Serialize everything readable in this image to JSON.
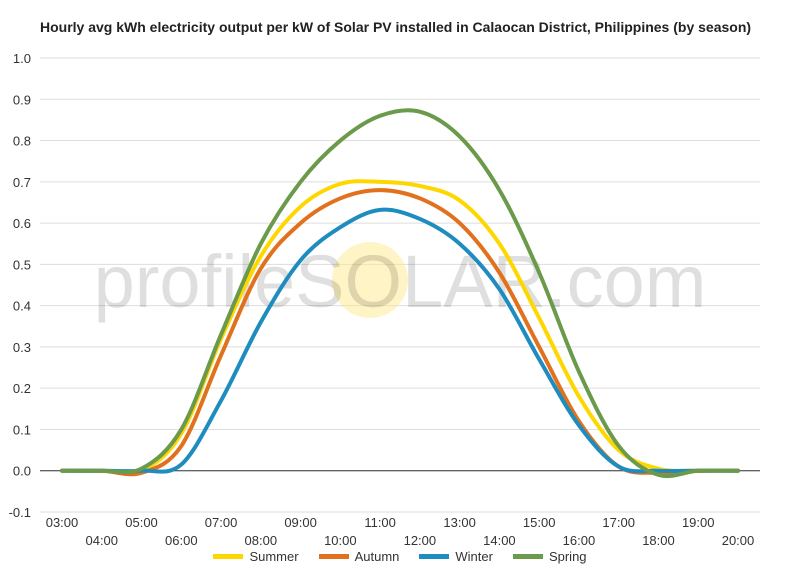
{
  "chart_data": {
    "type": "line",
    "title": "Hourly avg kWh electricity output per kW of Solar PV installed in Calaocan District, Philippines (by season)",
    "xlabel": "",
    "ylabel": "",
    "x": [
      "03:00",
      "04:00",
      "05:00",
      "06:00",
      "07:00",
      "08:00",
      "09:00",
      "10:00",
      "11:00",
      "12:00",
      "13:00",
      "14:00",
      "15:00",
      "16:00",
      "17:00",
      "18:00",
      "19:00",
      "20:00"
    ],
    "ylim": [
      -0.1,
      1.0
    ],
    "yticks": [
      "-0.1",
      "0.0",
      "0.1",
      "0.2",
      "0.3",
      "0.4",
      "0.5",
      "0.6",
      "0.7",
      "0.8",
      "0.9",
      "1.0"
    ],
    "grid": true,
    "legend_position": "bottom",
    "watermark": "profileSOLAR.com",
    "series": [
      {
        "name": "Summer",
        "color": "#FFD700",
        "values": [
          0,
          0,
          0,
          0.09,
          0.32,
          0.52,
          0.64,
          0.695,
          0.7,
          0.69,
          0.655,
          0.55,
          0.37,
          0.18,
          0.05,
          0.005,
          0,
          0
        ]
      },
      {
        "name": "Autumn",
        "color": "#E2711D",
        "values": [
          0,
          0,
          -0.005,
          0.06,
          0.28,
          0.49,
          0.6,
          0.66,
          0.68,
          0.66,
          0.6,
          0.48,
          0.3,
          0.12,
          0.01,
          -0.005,
          0,
          0
        ]
      },
      {
        "name": "Winter",
        "color": "#1F8CBF",
        "values": [
          0,
          0,
          0,
          0.015,
          0.17,
          0.36,
          0.51,
          0.59,
          0.632,
          0.61,
          0.55,
          0.44,
          0.27,
          0.11,
          0.01,
          0,
          0,
          0
        ]
      },
      {
        "name": "Spring",
        "color": "#6B9A4B",
        "values": [
          0,
          0,
          0.005,
          0.1,
          0.33,
          0.55,
          0.7,
          0.8,
          0.86,
          0.87,
          0.81,
          0.68,
          0.48,
          0.24,
          0.06,
          -0.01,
          0,
          0
        ]
      }
    ]
  }
}
